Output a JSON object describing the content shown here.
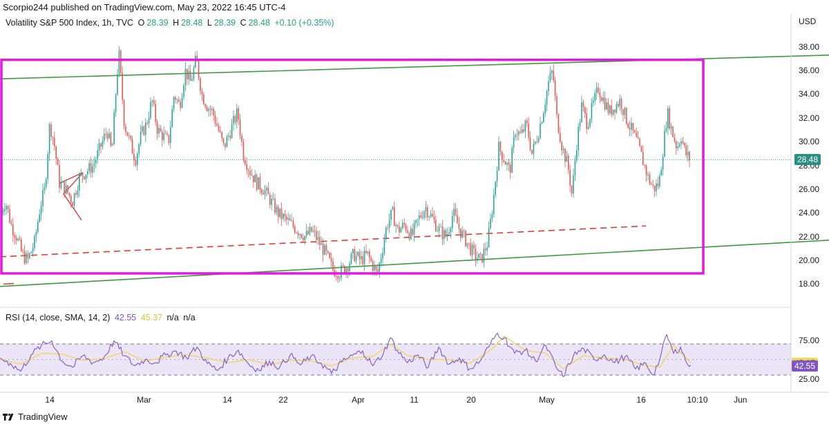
{
  "header": {
    "publisher": "Scorpio244 published on TradingView.com, May 23, 2022 16:45 UTC-4"
  },
  "footer": {
    "brand": "TradingView"
  },
  "chart_data": {
    "type": "candlestick",
    "symbol": {
      "title": "Volatility S&P 500 Index, 1h, TVC",
      "open_label": "O",
      "open": "28.39",
      "high_label": "H",
      "high": "28.48",
      "low_label": "L",
      "low": "28.39",
      "close_label": "C",
      "close": "28.48",
      "change": "+0.10 (+0.35%)"
    },
    "currency": "USD",
    "y_ticks": [
      "38.00",
      "36.00",
      "34.00",
      "32.00",
      "30.00",
      "28.00",
      "26.00",
      "24.00",
      "22.00",
      "20.00",
      "18.00"
    ],
    "ylim": [
      16.8,
      39.5
    ],
    "last_price": "28.48",
    "x_ticks": [
      "14",
      "Mar",
      "14",
      "22",
      "Apr",
      "11",
      "20",
      "May",
      "16",
      "10:10",
      "Jun"
    ],
    "price_path": [
      [
        0,
        23.8
      ],
      [
        8,
        25.0
      ],
      [
        16,
        23.0
      ],
      [
        24,
        22.0
      ],
      [
        32,
        20.5
      ],
      [
        40,
        20.0
      ],
      [
        50,
        21.5
      ],
      [
        58,
        24.5
      ],
      [
        65,
        26.0
      ],
      [
        72,
        31.5
      ],
      [
        78,
        30.0
      ],
      [
        86,
        26.5
      ],
      [
        95,
        26.0
      ],
      [
        105,
        25.0
      ],
      [
        115,
        27.0
      ],
      [
        125,
        27.5
      ],
      [
        135,
        28.0
      ],
      [
        145,
        29.5
      ],
      [
        155,
        31.0
      ],
      [
        162,
        29.0
      ],
      [
        168,
        34.5
      ],
      [
        172,
        37.5
      ],
      [
        180,
        31.5
      ],
      [
        188,
        30.0
      ],
      [
        196,
        28.5
      ],
      [
        204,
        30.5
      ],
      [
        212,
        31.5
      ],
      [
        220,
        33.5
      ],
      [
        228,
        31.0
      ],
      [
        236,
        30.5
      ],
      [
        244,
        30.0
      ],
      [
        252,
        34.0
      ],
      [
        260,
        33.0
      ],
      [
        268,
        36.0
      ],
      [
        276,
        35.0
      ],
      [
        284,
        37.0
      ],
      [
        292,
        34.0
      ],
      [
        300,
        33.0
      ],
      [
        308,
        32.5
      ],
      [
        316,
        31.0
      ],
      [
        324,
        29.5
      ],
      [
        334,
        31.0
      ],
      [
        344,
        32.5
      ],
      [
        352,
        29.0
      ],
      [
        362,
        27.5
      ],
      [
        372,
        26.5
      ],
      [
        382,
        26.0
      ],
      [
        392,
        25.0
      ],
      [
        402,
        24.0
      ],
      [
        412,
        23.5
      ],
      [
        422,
        23.0
      ],
      [
        432,
        22.5
      ],
      [
        442,
        22.0
      ],
      [
        452,
        22.5
      ],
      [
        462,
        21.5
      ],
      [
        472,
        20.5
      ],
      [
        482,
        19.2
      ],
      [
        492,
        19.0
      ],
      [
        502,
        19.5
      ],
      [
        512,
        20.5
      ],
      [
        522,
        20.0
      ],
      [
        532,
        20.5
      ],
      [
        540,
        19.5
      ],
      [
        546,
        18.8
      ],
      [
        552,
        20.5
      ],
      [
        560,
        23.0
      ],
      [
        568,
        24.0
      ],
      [
        576,
        22.5
      ],
      [
        586,
        23.0
      ],
      [
        596,
        22.0
      ],
      [
        606,
        23.5
      ],
      [
        616,
        24.5
      ],
      [
        626,
        23.5
      ],
      [
        636,
        22.5
      ],
      [
        646,
        22.0
      ],
      [
        656,
        24.0
      ],
      [
        666,
        22.5
      ],
      [
        676,
        21.5
      ],
      [
        686,
        20.5
      ],
      [
        696,
        20.0
      ],
      [
        706,
        21.5
      ],
      [
        714,
        25.0
      ],
      [
        722,
        29.5
      ],
      [
        730,
        28.5
      ],
      [
        738,
        27.5
      ],
      [
        746,
        31.0
      ],
      [
        754,
        30.5
      ],
      [
        762,
        31.5
      ],
      [
        770,
        29.0
      ],
      [
        778,
        30.5
      ],
      [
        786,
        32.5
      ],
      [
        794,
        35.0
      ],
      [
        800,
        36.0
      ],
      [
        806,
        32.0
      ],
      [
        814,
        29.5
      ],
      [
        822,
        28.0
      ],
      [
        828,
        25.5
      ],
      [
        834,
        29.5
      ],
      [
        842,
        33.0
      ],
      [
        850,
        31.5
      ],
      [
        858,
        33.0
      ],
      [
        866,
        34.5
      ],
      [
        874,
        33.5
      ],
      [
        882,
        32.5
      ],
      [
        890,
        33.0
      ],
      [
        898,
        33.5
      ],
      [
        906,
        32.0
      ],
      [
        914,
        31.0
      ],
      [
        922,
        30.0
      ],
      [
        930,
        28.5
      ],
      [
        938,
        27.0
      ],
      [
        946,
        26.0
      ],
      [
        954,
        26.5
      ],
      [
        960,
        29.5
      ],
      [
        966,
        32.5
      ],
      [
        972,
        31.0
      ],
      [
        980,
        29.5
      ],
      [
        986,
        30.5
      ],
      [
        992,
        29.0
      ],
      [
        1000,
        28.48
      ]
    ],
    "annotations": {
      "channel_upper": [
        [
          0,
          35.3
        ],
        [
          1200,
          37.3
        ]
      ],
      "channel_lower": [
        [
          0,
          17.8
        ],
        [
          1200,
          21.7
        ]
      ],
      "dashed_midline": [
        [
          0,
          20.3
        ],
        [
          935,
          22.9
        ]
      ],
      "range_box": {
        "x0": 0,
        "x1": 1018,
        "y_top": 36.9,
        "y_bottom": 18.9
      },
      "triangle": [
        [
          86,
          26.5
        ],
        [
          120,
          27.4
        ],
        [
          92,
          25.6
        ],
        [
          118,
          23.4
        ]
      ]
    },
    "rsi": {
      "label": "RSI (14, close, SMA, 14, 2)",
      "rsi_value": "42.55",
      "sma_value": "45.37",
      "extra_1": "n/a",
      "extra_2": "n/a",
      "ticks": [
        "75.00",
        "25.00"
      ],
      "ylim": [
        15,
        95
      ],
      "band": [
        30,
        70
      ],
      "rsi_path": [
        [
          0,
          52
        ],
        [
          15,
          45
        ],
        [
          30,
          35
        ],
        [
          45,
          56
        ],
        [
          60,
          68
        ],
        [
          75,
          74
        ],
        [
          90,
          48
        ],
        [
          105,
          40
        ],
        [
          120,
          55
        ],
        [
          135,
          46
        ],
        [
          150,
          52
        ],
        [
          165,
          74
        ],
        [
          180,
          55
        ],
        [
          195,
          42
        ],
        [
          210,
          50
        ],
        [
          225,
          46
        ],
        [
          240,
          56
        ],
        [
          255,
          61
        ],
        [
          270,
          52
        ],
        [
          285,
          66
        ],
        [
          300,
          45
        ],
        [
          315,
          36
        ],
        [
          330,
          52
        ],
        [
          345,
          62
        ],
        [
          360,
          44
        ],
        [
          375,
          36
        ],
        [
          390,
          48
        ],
        [
          405,
          40
        ],
        [
          420,
          56
        ],
        [
          435,
          43
        ],
        [
          450,
          54
        ],
        [
          465,
          45
        ],
        [
          480,
          32
        ],
        [
          495,
          47
        ],
        [
          510,
          55
        ],
        [
          525,
          61
        ],
        [
          540,
          42
        ],
        [
          555,
          58
        ],
        [
          565,
          78
        ],
        [
          575,
          62
        ],
        [
          590,
          46
        ],
        [
          605,
          56
        ],
        [
          620,
          40
        ],
        [
          635,
          66
        ],
        [
          650,
          44
        ],
        [
          665,
          52
        ],
        [
          680,
          38
        ],
        [
          695,
          48
        ],
        [
          710,
          70
        ],
        [
          720,
          84
        ],
        [
          730,
          78
        ],
        [
          745,
          58
        ],
        [
          760,
          62
        ],
        [
          775,
          48
        ],
        [
          790,
          68
        ],
        [
          805,
          40
        ],
        [
          815,
          28
        ],
        [
          830,
          55
        ],
        [
          845,
          64
        ],
        [
          860,
          50
        ],
        [
          875,
          56
        ],
        [
          890,
          46
        ],
        [
          905,
          54
        ],
        [
          920,
          38
        ],
        [
          935,
          45
        ],
        [
          945,
          30
        ],
        [
          955,
          50
        ],
        [
          965,
          82
        ],
        [
          975,
          58
        ],
        [
          985,
          66
        ],
        [
          995,
          44
        ],
        [
          1000,
          42.55
        ]
      ],
      "sma_path": [
        [
          0,
          50
        ],
        [
          30,
          44
        ],
        [
          60,
          58
        ],
        [
          90,
          57
        ],
        [
          120,
          49
        ],
        [
          150,
          51
        ],
        [
          180,
          60
        ],
        [
          210,
          48
        ],
        [
          240,
          53
        ],
        [
          270,
          56
        ],
        [
          300,
          52
        ],
        [
          330,
          46
        ],
        [
          360,
          50
        ],
        [
          390,
          43
        ],
        [
          420,
          49
        ],
        [
          450,
          48
        ],
        [
          480,
          42
        ],
        [
          510,
          52
        ],
        [
          540,
          54
        ],
        [
          565,
          70
        ],
        [
          590,
          55
        ],
        [
          620,
          50
        ],
        [
          650,
          50
        ],
        [
          680,
          45
        ],
        [
          710,
          62
        ],
        [
          730,
          80
        ],
        [
          760,
          62
        ],
        [
          790,
          58
        ],
        [
          815,
          38
        ],
        [
          845,
          55
        ],
        [
          875,
          52
        ],
        [
          905,
          50
        ],
        [
          935,
          42
        ],
        [
          955,
          40
        ],
        [
          975,
          68
        ],
        [
          1000,
          45.37
        ]
      ]
    }
  },
  "colors": {
    "up": "#26a69a",
    "down": "#ef5350",
    "box": "#e11adf",
    "channel": "#3d9a3d",
    "dashed": "#e53935",
    "rsi": "#7e57c2",
    "sma": "#efd65f",
    "rsi_band": "#ece5f7",
    "price_tag": "#2a8f83"
  }
}
